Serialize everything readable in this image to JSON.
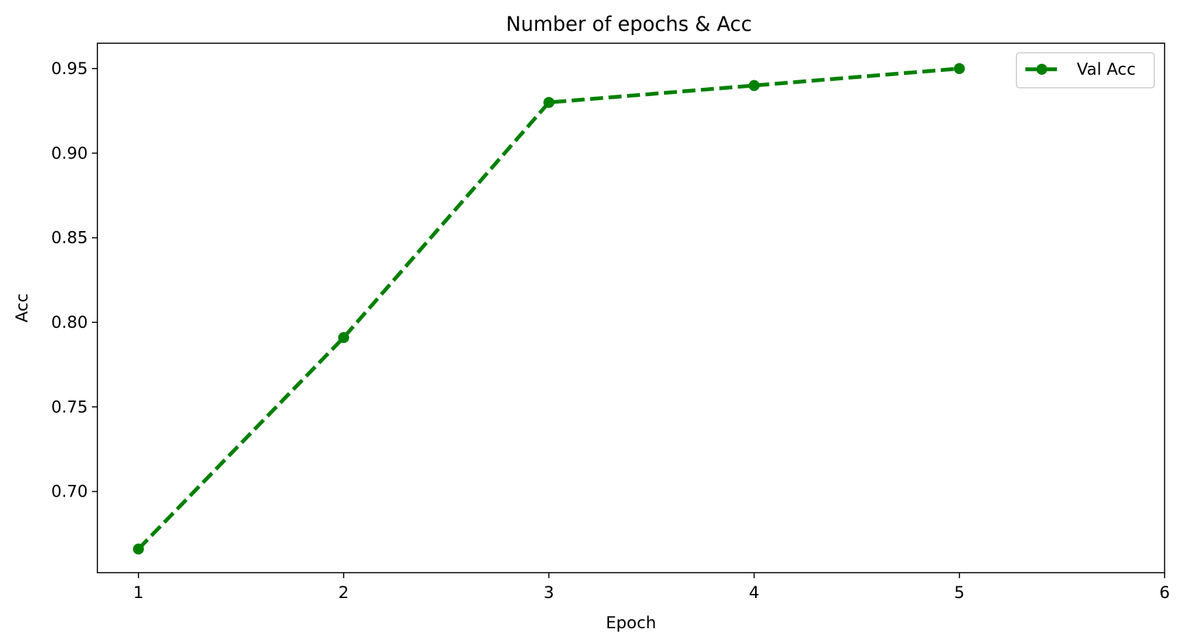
{
  "chart_data": {
    "type": "line",
    "title": "Number of epochs & Acc",
    "xlabel": "Epoch",
    "ylabel": "Acc",
    "x": [
      1,
      2,
      3,
      4,
      5
    ],
    "series": [
      {
        "name": "Val Acc",
        "values": [
          0.666,
          0.791,
          0.93,
          0.94,
          0.95
        ],
        "color": "#008000",
        "line_style": "dashed",
        "marker": "circle"
      }
    ],
    "xlim": [
      0.8,
      6
    ],
    "ylim": [
      0.652,
      0.965
    ],
    "xticks": [
      1,
      2,
      3,
      4,
      5,
      6
    ],
    "xtick_labels": [
      "1",
      "2",
      "3",
      "4",
      "5",
      "6"
    ],
    "yticks": [
      0.7,
      0.75,
      0.8,
      0.85,
      0.9,
      0.95
    ],
    "ytick_labels": [
      "0.70",
      "0.75",
      "0.80",
      "0.85",
      "0.90",
      "0.95"
    ],
    "grid": false,
    "legend_position": "top-right"
  }
}
